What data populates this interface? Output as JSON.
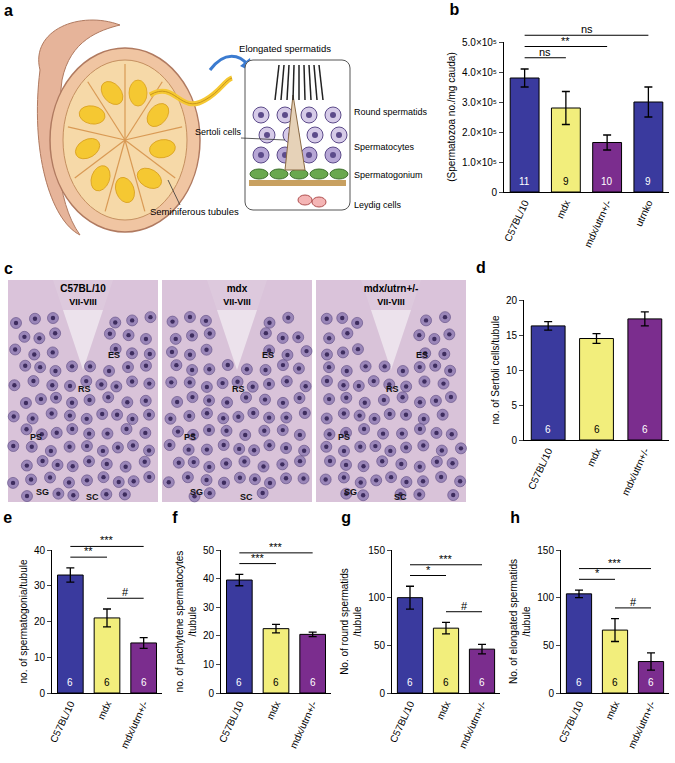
{
  "diagram": {
    "panel": "a",
    "labels": {
      "tubules": "Seminiferous tubules",
      "elongated": "Elongated spermatids",
      "round": "Round spermatids",
      "spermatocytes": "Spermatocytes",
      "spermatogonium": "Spermatogonium",
      "sertoli": "Sertoli cells",
      "leydig": "Leydig cells"
    }
  },
  "micrograph": {
    "panel": "c",
    "images": [
      {
        "title": "C57BL/10",
        "stage": "VII-VIII",
        "labels": [
          "ES",
          "RS",
          "PS",
          "SC",
          "SG"
        ]
      },
      {
        "title": "mdx",
        "stage": "VII-VIII",
        "labels": [
          "ES",
          "RS",
          "PS",
          "SC",
          "SG"
        ]
      },
      {
        "title": "mdx/utrn+/-",
        "stage": "VII-VIII",
        "labels": [
          "ES",
          "RS",
          "PS",
          "SC",
          "SG"
        ]
      }
    ]
  },
  "chart_data": [
    {
      "type": "bar",
      "title": "b",
      "categories": [
        "C57BL/10",
        "mdx",
        "mdx/utrn+/-",
        "utrnko"
      ],
      "values": [
        380000,
        280000,
        165000,
        300000
      ],
      "errors": [
        30000,
        55000,
        25000,
        50000
      ],
      "sample_sizes": [
        11,
        9,
        10,
        9
      ],
      "colors": [
        "#3a3a9e",
        "#f2ee7c",
        "#7b2d8e",
        "#3a3a9e"
      ],
      "y_label": "(Spermatozoa no./mg cauda)",
      "ylim": [
        0,
        500000
      ],
      "yticks": [
        0,
        {
          "value": 100000,
          "label": "1.0×10⁵"
        },
        {
          "value": 200000,
          "label": "2.0×10⁵"
        },
        {
          "value": 300000,
          "label": "3.0×10⁵"
        },
        {
          "value": 400000,
          "label": "4.0×10⁵"
        },
        {
          "value": 500000,
          "label": "5.0×10⁵"
        }
      ],
      "grid": false,
      "significance": [
        {
          "from": 0,
          "to": 1,
          "label": "ns"
        },
        {
          "from": 0,
          "to": 2,
          "label": "**"
        },
        {
          "from": 0,
          "to": 3,
          "label": "ns"
        }
      ]
    },
    {
      "type": "bar",
      "title": "d",
      "categories": [
        "C57BL/10",
        "mdx",
        "mdx/utrn+/-"
      ],
      "values": [
        16.3,
        14.5,
        17.3
      ],
      "errors": [
        0.6,
        0.7,
        1.0
      ],
      "sample_sizes": [
        6,
        6,
        6
      ],
      "colors": [
        "#3a3a9e",
        "#f2ee7c",
        "#7b2d8e"
      ],
      "y_label": "no. of Sertoli cells/tubule",
      "ylim": [
        0,
        20
      ],
      "yticks": [
        0,
        5,
        10,
        15,
        20
      ],
      "grid": false,
      "significance": []
    },
    {
      "type": "bar",
      "title": "e",
      "categories": [
        "C57BL/10",
        "mdx",
        "mdx/utrn+/-"
      ],
      "values": [
        33,
        21,
        14
      ],
      "errors": [
        2,
        2.5,
        1.5
      ],
      "sample_sizes": [
        6,
        6,
        6
      ],
      "colors": [
        "#3a3a9e",
        "#f2ee7c",
        "#7b2d8e"
      ],
      "y_label": "no. of spermatogonia/tubule",
      "ylim": [
        0,
        40
      ],
      "yticks": [
        0,
        10,
        20,
        30,
        40
      ],
      "grid": false,
      "significance": [
        {
          "from": 1,
          "to": 2,
          "label": "#"
        },
        {
          "from": 0,
          "to": 1,
          "label": "**"
        },
        {
          "from": 0,
          "to": 2,
          "label": "***"
        }
      ]
    },
    {
      "type": "bar",
      "title": "f",
      "categories": [
        "C57BL/10",
        "mdx",
        "mdx/utrn+/-"
      ],
      "values": [
        39.5,
        22.5,
        20.5
      ],
      "errors": [
        2,
        1.5,
        0.8
      ],
      "sample_sizes": [
        6,
        6,
        6
      ],
      "colors": [
        "#3a3a9e",
        "#f2ee7c",
        "#7b2d8e"
      ],
      "y_label": "no. of pachytene spermatocytes\n/tubule",
      "ylim": [
        0,
        50
      ],
      "yticks": [
        0,
        10,
        20,
        30,
        40,
        50
      ],
      "grid": false,
      "significance": [
        {
          "from": 0,
          "to": 1,
          "label": "***"
        },
        {
          "from": 0,
          "to": 2,
          "label": "***"
        }
      ]
    },
    {
      "type": "bar",
      "title": "g",
      "categories": [
        "C57BL/10",
        "mdx",
        "mdx/utrn+/-"
      ],
      "values": [
        100,
        68,
        46
      ],
      "errors": [
        12,
        6,
        5
      ],
      "sample_sizes": [
        6,
        6,
        6
      ],
      "colors": [
        "#3a3a9e",
        "#f2ee7c",
        "#7b2d8e"
      ],
      "y_label": "No. of round spermatids\n/tubule",
      "ylim": [
        0,
        150
      ],
      "yticks": [
        0,
        50,
        100,
        150
      ],
      "grid": false,
      "significance": [
        {
          "from": 1,
          "to": 2,
          "label": "#"
        },
        {
          "from": 0,
          "to": 1,
          "label": "*"
        },
        {
          "from": 0,
          "to": 2,
          "label": "***"
        }
      ]
    },
    {
      "type": "bar",
      "title": "h",
      "categories": [
        "C57BL/10",
        "mdx",
        "mdx/utrn+/-"
      ],
      "values": [
        104,
        66,
        33
      ],
      "errors": [
        4,
        12,
        9
      ],
      "sample_sizes": [
        6,
        6,
        6
      ],
      "colors": [
        "#3a3a9e",
        "#f2ee7c",
        "#7b2d8e"
      ],
      "y_label": "No. of elongated spermatids\n/tubule",
      "ylim": [
        0,
        150
      ],
      "yticks": [
        0,
        50,
        100,
        150
      ],
      "grid": false,
      "significance": [
        {
          "from": 1,
          "to": 2,
          "label": "#"
        },
        {
          "from": 0,
          "to": 1,
          "label": "*"
        },
        {
          "from": 0,
          "to": 2,
          "label": "***"
        }
      ]
    }
  ]
}
